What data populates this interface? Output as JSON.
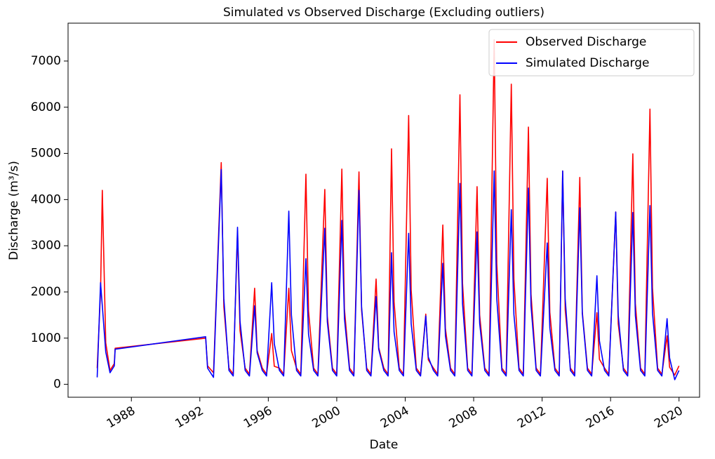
{
  "chart_data": {
    "type": "line",
    "title": "Simulated vs Observed Discharge (Excluding outliers)",
    "x_label": "Date",
    "y_label": "Discharge (m³/s)",
    "xlim": [
      1984.3,
      2021.2
    ],
    "xticks": [
      1988,
      1992,
      1996,
      2000,
      2004,
      2008,
      2012,
      2016,
      2020
    ],
    "ylim": [
      -280,
      7820
    ],
    "yticks": [
      0,
      1000,
      2000,
      3000,
      4000,
      5000,
      6000,
      7000
    ],
    "legend": "upper right",
    "x": [
      1986.0,
      1986.2,
      1986.3,
      1986.5,
      1986.75,
      1987.0,
      1987.05,
      1992.34,
      1992.45,
      1992.8,
      1993.25,
      1993.4,
      1993.7,
      1993.95,
      1994.2,
      1994.35,
      1994.65,
      1994.9,
      1995.2,
      1995.35,
      1995.65,
      1995.9,
      1996.2,
      1996.35,
      1996.65,
      1996.9,
      1997.2,
      1997.35,
      1997.65,
      1997.9,
      1998.2,
      1998.35,
      1998.65,
      1998.9,
      1999.3,
      1999.45,
      1999.75,
      2000.0,
      2000.3,
      2000.45,
      2000.75,
      2001.0,
      2001.3,
      2001.45,
      2001.75,
      2002.0,
      2002.3,
      2002.45,
      2002.75,
      2003.0,
      2003.2,
      2003.35,
      2003.65,
      2003.9,
      2004.2,
      2004.35,
      2004.65,
      2004.9,
      2005.2,
      2005.35,
      2005.65,
      2005.9,
      2006.2,
      2006.35,
      2006.65,
      2006.9,
      2007.2,
      2007.35,
      2007.65,
      2007.9,
      2008.2,
      2008.35,
      2008.65,
      2008.9,
      2009.2,
      2009.35,
      2009.65,
      2009.9,
      2010.2,
      2010.35,
      2010.65,
      2010.9,
      2011.2,
      2011.35,
      2011.65,
      2011.9,
      2012.3,
      2012.45,
      2012.75,
      2013.0,
      2013.2,
      2013.35,
      2013.65,
      2013.9,
      2014.2,
      2014.35,
      2014.65,
      2014.9,
      2015.2,
      2015.35,
      2015.65,
      2015.9,
      2016.3,
      2016.45,
      2016.75,
      2017.0,
      2017.3,
      2017.45,
      2017.75,
      2018.0,
      2018.3,
      2018.45,
      2018.75,
      2019.0,
      2019.3,
      2019.45,
      2019.75,
      2020.0
    ],
    "series": [
      {
        "name": "Observed Discharge",
        "color": "#ff0000",
        "values": [
          350,
          2000,
          4200,
          900,
          300,
          450,
          780,
          1000,
          400,
          250,
          4800,
          1680,
          350,
          220,
          3300,
          1160,
          350,
          220,
          2080,
          730,
          350,
          220,
          1100,
          390,
          350,
          220,
          2080,
          730,
          350,
          220,
          4550,
          1590,
          350,
          220,
          4220,
          1480,
          350,
          220,
          4660,
          1630,
          350,
          220,
          4600,
          1610,
          350,
          220,
          2280,
          800,
          350,
          220,
          5100,
          1790,
          350,
          220,
          5820,
          2040,
          350,
          220,
          1520,
          530,
          350,
          220,
          3450,
          1210,
          350,
          220,
          6270,
          2190,
          350,
          220,
          4280,
          1500,
          350,
          220,
          7460,
          2610,
          350,
          220,
          6500,
          2280,
          350,
          220,
          5570,
          1950,
          350,
          220,
          4460,
          1560,
          350,
          220,
          4620,
          1620,
          350,
          220,
          4480,
          1570,
          350,
          220,
          1550,
          540,
          350,
          220,
          3730,
          1310,
          350,
          220,
          4990,
          1750,
          350,
          220,
          5960,
          2090,
          350,
          220,
          1050,
          370,
          200,
          400
        ]
      },
      {
        "name": "Simulated Discharge",
        "color": "#0000ff",
        "values": [
          150,
          2200,
          1700,
          700,
          250,
          400,
          760,
          1030,
          350,
          150,
          4650,
          1860,
          300,
          180,
          3400,
          1360,
          300,
          180,
          1700,
          680,
          300,
          180,
          2200,
          880,
          300,
          180,
          3750,
          1500,
          300,
          180,
          2720,
          1090,
          300,
          180,
          3380,
          1350,
          300,
          180,
          3550,
          1420,
          300,
          180,
          4200,
          1680,
          300,
          180,
          1900,
          760,
          300,
          180,
          2850,
          1140,
          300,
          180,
          3270,
          1310,
          300,
          180,
          1480,
          590,
          300,
          180,
          2620,
          1050,
          300,
          180,
          4350,
          1740,
          300,
          180,
          3300,
          1320,
          300,
          180,
          4620,
          1850,
          300,
          180,
          3780,
          1510,
          300,
          180,
          4250,
          1700,
          300,
          180,
          3060,
          1220,
          300,
          180,
          4620,
          1850,
          300,
          180,
          3820,
          1530,
          300,
          180,
          2350,
          940,
          300,
          180,
          3730,
          1490,
          300,
          180,
          3720,
          1490,
          300,
          180,
          3870,
          1550,
          300,
          180,
          1420,
          570,
          100,
          300
        ]
      }
    ]
  }
}
